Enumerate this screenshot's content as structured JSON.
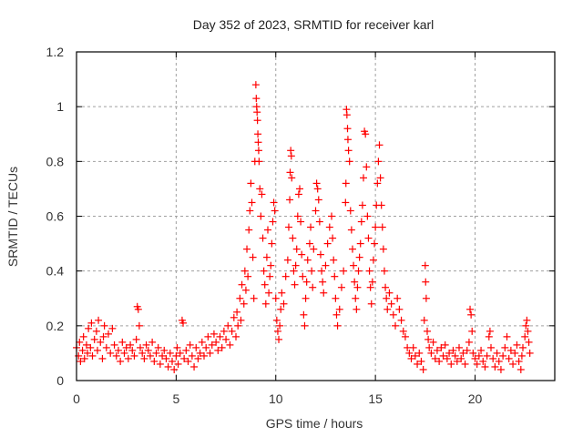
{
  "chart_data": {
    "type": "scatter",
    "title": "Day 352 of 2023, SRMTID for receiver karl",
    "xlabel": "GPS time / hours",
    "ylabel": "SRMTID / TECUs",
    "xlim": [
      0,
      24
    ],
    "ylim": [
      0,
      1.2
    ],
    "xticks": [
      0,
      5,
      10,
      15,
      20
    ],
    "xtick_labels": [
      "0",
      "5",
      "10",
      "15",
      "20"
    ],
    "yticks": [
      0,
      0.2,
      0.4,
      0.6,
      0.8,
      1.0,
      1.2
    ],
    "ytick_labels": [
      "0",
      "0.2",
      "0.4",
      "0.6",
      "0.8",
      "1",
      "1.2"
    ],
    "grid": true,
    "legend": "none",
    "marker": "plus",
    "series": [
      {
        "name": "SRMTID",
        "color": "#ff0000",
        "envelope_note": "dense scatter; values listed as [hour, value]",
        "points": [
          [
            0.0,
            0.12
          ],
          [
            0.1,
            0.09
          ],
          [
            0.15,
            0.14
          ],
          [
            0.2,
            0.07
          ],
          [
            0.3,
            0.11
          ],
          [
            0.35,
            0.16
          ],
          [
            0.4,
            0.08
          ],
          [
            0.5,
            0.13
          ],
          [
            0.55,
            0.1
          ],
          [
            0.6,
            0.19
          ],
          [
            0.7,
            0.12
          ],
          [
            0.75,
            0.21
          ],
          [
            0.8,
            0.09
          ],
          [
            0.9,
            0.15
          ],
          [
            1.0,
            0.18
          ],
          [
            1.05,
            0.11
          ],
          [
            1.1,
            0.22
          ],
          [
            1.2,
            0.14
          ],
          [
            1.3,
            0.08
          ],
          [
            1.35,
            0.16
          ],
          [
            1.4,
            0.2
          ],
          [
            1.5,
            0.12
          ],
          [
            1.6,
            0.17
          ],
          [
            1.7,
            0.1
          ],
          [
            1.8,
            0.19
          ],
          [
            1.9,
            0.13
          ],
          [
            2.0,
            0.09
          ],
          [
            2.1,
            0.11
          ],
          [
            2.2,
            0.07
          ],
          [
            2.3,
            0.14
          ],
          [
            2.4,
            0.1
          ],
          [
            2.5,
            0.12
          ],
          [
            2.6,
            0.08
          ],
          [
            2.7,
            0.13
          ],
          [
            2.8,
            0.11
          ],
          [
            2.9,
            0.09
          ],
          [
            3.0,
            0.15
          ],
          [
            3.05,
            0.27
          ],
          [
            3.1,
            0.26
          ],
          [
            3.15,
            0.2
          ],
          [
            3.2,
            0.12
          ],
          [
            3.3,
            0.1
          ],
          [
            3.4,
            0.08
          ],
          [
            3.5,
            0.13
          ],
          [
            3.6,
            0.11
          ],
          [
            3.7,
            0.09
          ],
          [
            3.8,
            0.14
          ],
          [
            3.9,
            0.07
          ],
          [
            4.0,
            0.1
          ],
          [
            4.1,
            0.12
          ],
          [
            4.2,
            0.06
          ],
          [
            4.3,
            0.09
          ],
          [
            4.4,
            0.11
          ],
          [
            4.5,
            0.08
          ],
          [
            4.6,
            0.05
          ],
          [
            4.7,
            0.1
          ],
          [
            4.8,
            0.07
          ],
          [
            4.9,
            0.04
          ],
          [
            5.0,
            0.09
          ],
          [
            5.05,
            0.12
          ],
          [
            5.1,
            0.06
          ],
          [
            5.2,
            0.1
          ],
          [
            5.3,
            0.22
          ],
          [
            5.35,
            0.21
          ],
          [
            5.4,
            0.08
          ],
          [
            5.5,
            0.11
          ],
          [
            5.6,
            0.07
          ],
          [
            5.7,
            0.13
          ],
          [
            5.8,
            0.09
          ],
          [
            5.9,
            0.05
          ],
          [
            6.0,
            0.12
          ],
          [
            6.1,
            0.08
          ],
          [
            6.2,
            0.1
          ],
          [
            6.3,
            0.14
          ],
          [
            6.4,
            0.09
          ],
          [
            6.5,
            0.12
          ],
          [
            6.6,
            0.16
          ],
          [
            6.7,
            0.1
          ],
          [
            6.8,
            0.13
          ],
          [
            6.9,
            0.17
          ],
          [
            7.0,
            0.14
          ],
          [
            7.1,
            0.11
          ],
          [
            7.2,
            0.16
          ],
          [
            7.3,
            0.12
          ],
          [
            7.4,
            0.18
          ],
          [
            7.5,
            0.15
          ],
          [
            7.6,
            0.2
          ],
          [
            7.7,
            0.13
          ],
          [
            7.8,
            0.18
          ],
          [
            7.9,
            0.23
          ],
          [
            8.0,
            0.16
          ],
          [
            8.05,
            0.25
          ],
          [
            8.1,
            0.2
          ],
          [
            8.2,
            0.3
          ],
          [
            8.25,
            0.22
          ],
          [
            8.3,
            0.35
          ],
          [
            8.4,
            0.28
          ],
          [
            8.45,
            0.4
          ],
          [
            8.5,
            0.33
          ],
          [
            8.55,
            0.48
          ],
          [
            8.6,
            0.38
          ],
          [
            8.65,
            0.55
          ],
          [
            8.7,
            0.62
          ],
          [
            8.75,
            0.72
          ],
          [
            8.8,
            0.65
          ],
          [
            8.85,
            0.45
          ],
          [
            8.9,
            0.3
          ],
          [
            8.95,
            0.8
          ],
          [
            9.0,
            1.08
          ],
          [
            9.02,
            1.03
          ],
          [
            9.04,
            1.0
          ],
          [
            9.06,
            0.98
          ],
          [
            9.08,
            0.95
          ],
          [
            9.1,
            0.9
          ],
          [
            9.12,
            0.87
          ],
          [
            9.14,
            0.84
          ],
          [
            9.16,
            0.8
          ],
          [
            9.2,
            0.7
          ],
          [
            9.25,
            0.6
          ],
          [
            9.3,
            0.68
          ],
          [
            9.35,
            0.52
          ],
          [
            9.4,
            0.4
          ],
          [
            9.45,
            0.35
          ],
          [
            9.5,
            0.28
          ],
          [
            9.55,
            0.45
          ],
          [
            9.6,
            0.55
          ],
          [
            9.65,
            0.32
          ],
          [
            9.7,
            0.38
          ],
          [
            9.75,
            0.42
          ],
          [
            9.8,
            0.5
          ],
          [
            9.85,
            0.58
          ],
          [
            9.9,
            0.65
          ],
          [
            9.95,
            0.62
          ],
          [
            10.0,
            0.3
          ],
          [
            10.05,
            0.22
          ],
          [
            10.1,
            0.18
          ],
          [
            10.15,
            0.15
          ],
          [
            10.2,
            0.2
          ],
          [
            10.25,
            0.26
          ],
          [
            10.3,
            0.32
          ],
          [
            10.4,
            0.28
          ],
          [
            10.5,
            0.38
          ],
          [
            10.6,
            0.44
          ],
          [
            10.65,
            0.56
          ],
          [
            10.7,
            0.66
          ],
          [
            10.72,
            0.76
          ],
          [
            10.75,
            0.84
          ],
          [
            10.78,
            0.82
          ],
          [
            10.8,
            0.74
          ],
          [
            10.85,
            0.52
          ],
          [
            10.9,
            0.4
          ],
          [
            10.95,
            0.35
          ],
          [
            11.0,
            0.42
          ],
          [
            11.05,
            0.48
          ],
          [
            11.1,
            0.6
          ],
          [
            11.15,
            0.68
          ],
          [
            11.2,
            0.7
          ],
          [
            11.25,
            0.58
          ],
          [
            11.3,
            0.46
          ],
          [
            11.35,
            0.38
          ],
          [
            11.4,
            0.24
          ],
          [
            11.45,
            0.2
          ],
          [
            11.5,
            0.3
          ],
          [
            11.55,
            0.36
          ],
          [
            11.6,
            0.44
          ],
          [
            11.7,
            0.5
          ],
          [
            11.75,
            0.56
          ],
          [
            11.8,
            0.4
          ],
          [
            11.85,
            0.34
          ],
          [
            11.9,
            0.48
          ],
          [
            12.0,
            0.62
          ],
          [
            12.05,
            0.72
          ],
          [
            12.1,
            0.7
          ],
          [
            12.15,
            0.66
          ],
          [
            12.2,
            0.58
          ],
          [
            12.25,
            0.46
          ],
          [
            12.3,
            0.4
          ],
          [
            12.35,
            0.36
          ],
          [
            12.4,
            0.32
          ],
          [
            12.5,
            0.42
          ],
          [
            12.6,
            0.5
          ],
          [
            12.7,
            0.56
          ],
          [
            12.8,
            0.6
          ],
          [
            12.85,
            0.52
          ],
          [
            12.9,
            0.44
          ],
          [
            12.95,
            0.38
          ],
          [
            13.0,
            0.3
          ],
          [
            13.05,
            0.24
          ],
          [
            13.1,
            0.2
          ],
          [
            13.2,
            0.26
          ],
          [
            13.3,
            0.34
          ],
          [
            13.4,
            0.4
          ],
          [
            13.5,
            0.65
          ],
          [
            13.52,
            0.72
          ],
          [
            13.55,
            0.99
          ],
          [
            13.57,
            0.97
          ],
          [
            13.6,
            0.92
          ],
          [
            13.62,
            0.88
          ],
          [
            13.65,
            0.84
          ],
          [
            13.7,
            0.8
          ],
          [
            13.75,
            0.62
          ],
          [
            13.8,
            0.55
          ],
          [
            13.85,
            0.48
          ],
          [
            13.9,
            0.42
          ],
          [
            13.95,
            0.36
          ],
          [
            14.0,
            0.3
          ],
          [
            14.05,
            0.26
          ],
          [
            14.1,
            0.34
          ],
          [
            14.15,
            0.4
          ],
          [
            14.2,
            0.45
          ],
          [
            14.25,
            0.5
          ],
          [
            14.3,
            0.58
          ],
          [
            14.35,
            0.64
          ],
          [
            14.4,
            0.74
          ],
          [
            14.45,
            0.91
          ],
          [
            14.5,
            0.9
          ],
          [
            14.55,
            0.78
          ],
          [
            14.6,
            0.6
          ],
          [
            14.65,
            0.52
          ],
          [
            14.7,
            0.4
          ],
          [
            14.75,
            0.34
          ],
          [
            14.8,
            0.28
          ],
          [
            14.85,
            0.36
          ],
          [
            14.9,
            0.44
          ],
          [
            14.95,
            0.5
          ],
          [
            15.0,
            0.56
          ],
          [
            15.05,
            0.64
          ],
          [
            15.1,
            0.72
          ],
          [
            15.15,
            0.8
          ],
          [
            15.2,
            0.86
          ],
          [
            15.25,
            0.74
          ],
          [
            15.3,
            0.64
          ],
          [
            15.35,
            0.56
          ],
          [
            15.4,
            0.48
          ],
          [
            15.45,
            0.4
          ],
          [
            15.5,
            0.34
          ],
          [
            15.55,
            0.3
          ],
          [
            15.6,
            0.26
          ],
          [
            15.7,
            0.32
          ],
          [
            15.8,
            0.28
          ],
          [
            15.9,
            0.24
          ],
          [
            16.0,
            0.2
          ],
          [
            16.1,
            0.3
          ],
          [
            16.2,
            0.26
          ],
          [
            16.3,
            0.22
          ],
          [
            16.4,
            0.18
          ],
          [
            16.5,
            0.16
          ],
          [
            16.6,
            0.12
          ],
          [
            16.7,
            0.1
          ],
          [
            16.8,
            0.08
          ],
          [
            16.9,
            0.12
          ],
          [
            17.0,
            0.09
          ],
          [
            17.1,
            0.06
          ],
          [
            17.2,
            0.1
          ],
          [
            17.3,
            0.07
          ],
          [
            17.4,
            0.04
          ],
          [
            17.45,
            0.22
          ],
          [
            17.5,
            0.42
          ],
          [
            17.52,
            0.36
          ],
          [
            17.55,
            0.3
          ],
          [
            17.6,
            0.18
          ],
          [
            17.65,
            0.15
          ],
          [
            17.7,
            0.12
          ],
          [
            17.8,
            0.1
          ],
          [
            17.9,
            0.14
          ],
          [
            18.0,
            0.08
          ],
          [
            18.1,
            0.11
          ],
          [
            18.2,
            0.07
          ],
          [
            18.3,
            0.12
          ],
          [
            18.4,
            0.09
          ],
          [
            18.5,
            0.13
          ],
          [
            18.6,
            0.08
          ],
          [
            18.7,
            0.1
          ],
          [
            18.8,
            0.06
          ],
          [
            18.9,
            0.11
          ],
          [
            19.0,
            0.09
          ],
          [
            19.1,
            0.07
          ],
          [
            19.2,
            0.12
          ],
          [
            19.3,
            0.08
          ],
          [
            19.4,
            0.1
          ],
          [
            19.5,
            0.06
          ],
          [
            19.6,
            0.11
          ],
          [
            19.7,
            0.14
          ],
          [
            19.75,
            0.26
          ],
          [
            19.8,
            0.24
          ],
          [
            19.85,
            0.18
          ],
          [
            19.9,
            0.1
          ],
          [
            20.0,
            0.08
          ],
          [
            20.1,
            0.06
          ],
          [
            20.2,
            0.09
          ],
          [
            20.3,
            0.11
          ],
          [
            20.4,
            0.07
          ],
          [
            20.5,
            0.05
          ],
          [
            20.6,
            0.09
          ],
          [
            20.7,
            0.16
          ],
          [
            20.75,
            0.18
          ],
          [
            20.8,
            0.12
          ],
          [
            20.9,
            0.08
          ],
          [
            21.0,
            0.05
          ],
          [
            21.1,
            0.1
          ],
          [
            21.2,
            0.07
          ],
          [
            21.3,
            0.04
          ],
          [
            21.4,
            0.09
          ],
          [
            21.5,
            0.12
          ],
          [
            21.6,
            0.16
          ],
          [
            21.7,
            0.08
          ],
          [
            21.8,
            0.11
          ],
          [
            21.9,
            0.06
          ],
          [
            22.0,
            0.1
          ],
          [
            22.1,
            0.13
          ],
          [
            22.2,
            0.07
          ],
          [
            22.3,
            0.04
          ],
          [
            22.35,
            0.09
          ],
          [
            22.4,
            0.12
          ],
          [
            22.5,
            0.16
          ],
          [
            22.55,
            0.2
          ],
          [
            22.6,
            0.22
          ],
          [
            22.65,
            0.18
          ],
          [
            22.7,
            0.14
          ],
          [
            22.75,
            0.1
          ]
        ]
      }
    ]
  }
}
